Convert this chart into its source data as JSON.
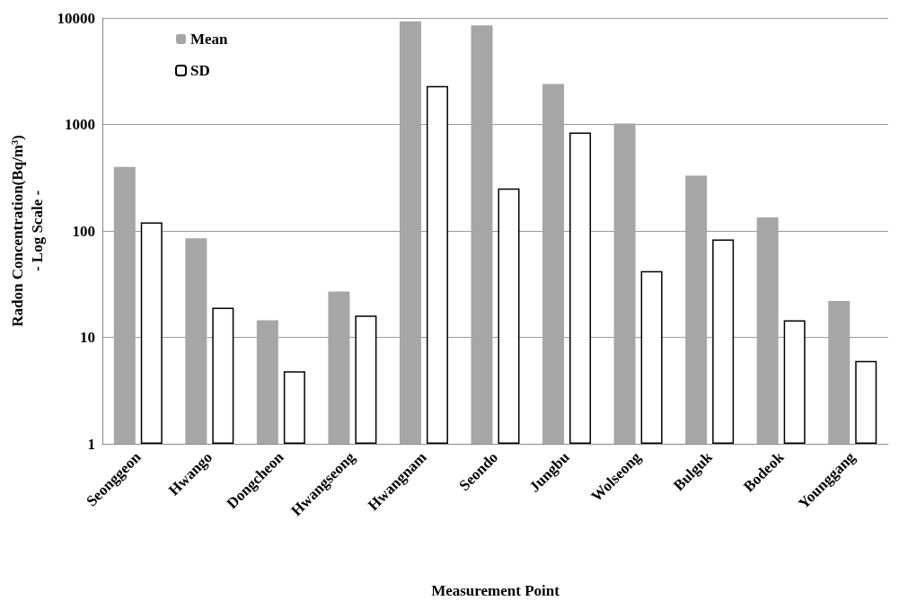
{
  "chart_data": {
    "type": "bar",
    "xlabel": "Measurement Point",
    "ylabel": "Radon Concentration(Bq/m³)\n- Log Scale -",
    "categories": [
      "Seonggeon",
      "Hwango",
      "Dongcheon",
      "Hwangseong",
      "Hwangnam",
      "Seondo",
      "Jungbu",
      "Wolseong",
      "Bulguk",
      "Bodeok",
      "Younggang"
    ],
    "series": [
      {
        "name": "Mean",
        "color": "#a6a6a6",
        "values": [
          400,
          85,
          14.5,
          27,
          9300,
          8500,
          2400,
          1020,
          330,
          134,
          22
        ]
      },
      {
        "name": "SD",
        "color": "#ffffff",
        "values": [
          120,
          19,
          4.8,
          16,
          2300,
          250,
          840,
          42,
          83,
          14.5,
          6
        ]
      }
    ],
    "log": "y",
    "ylim": [
      1,
      10000
    ],
    "yticks": [
      1,
      10,
      100,
      1000,
      10000
    ],
    "grid": "y",
    "legend": "top left"
  }
}
